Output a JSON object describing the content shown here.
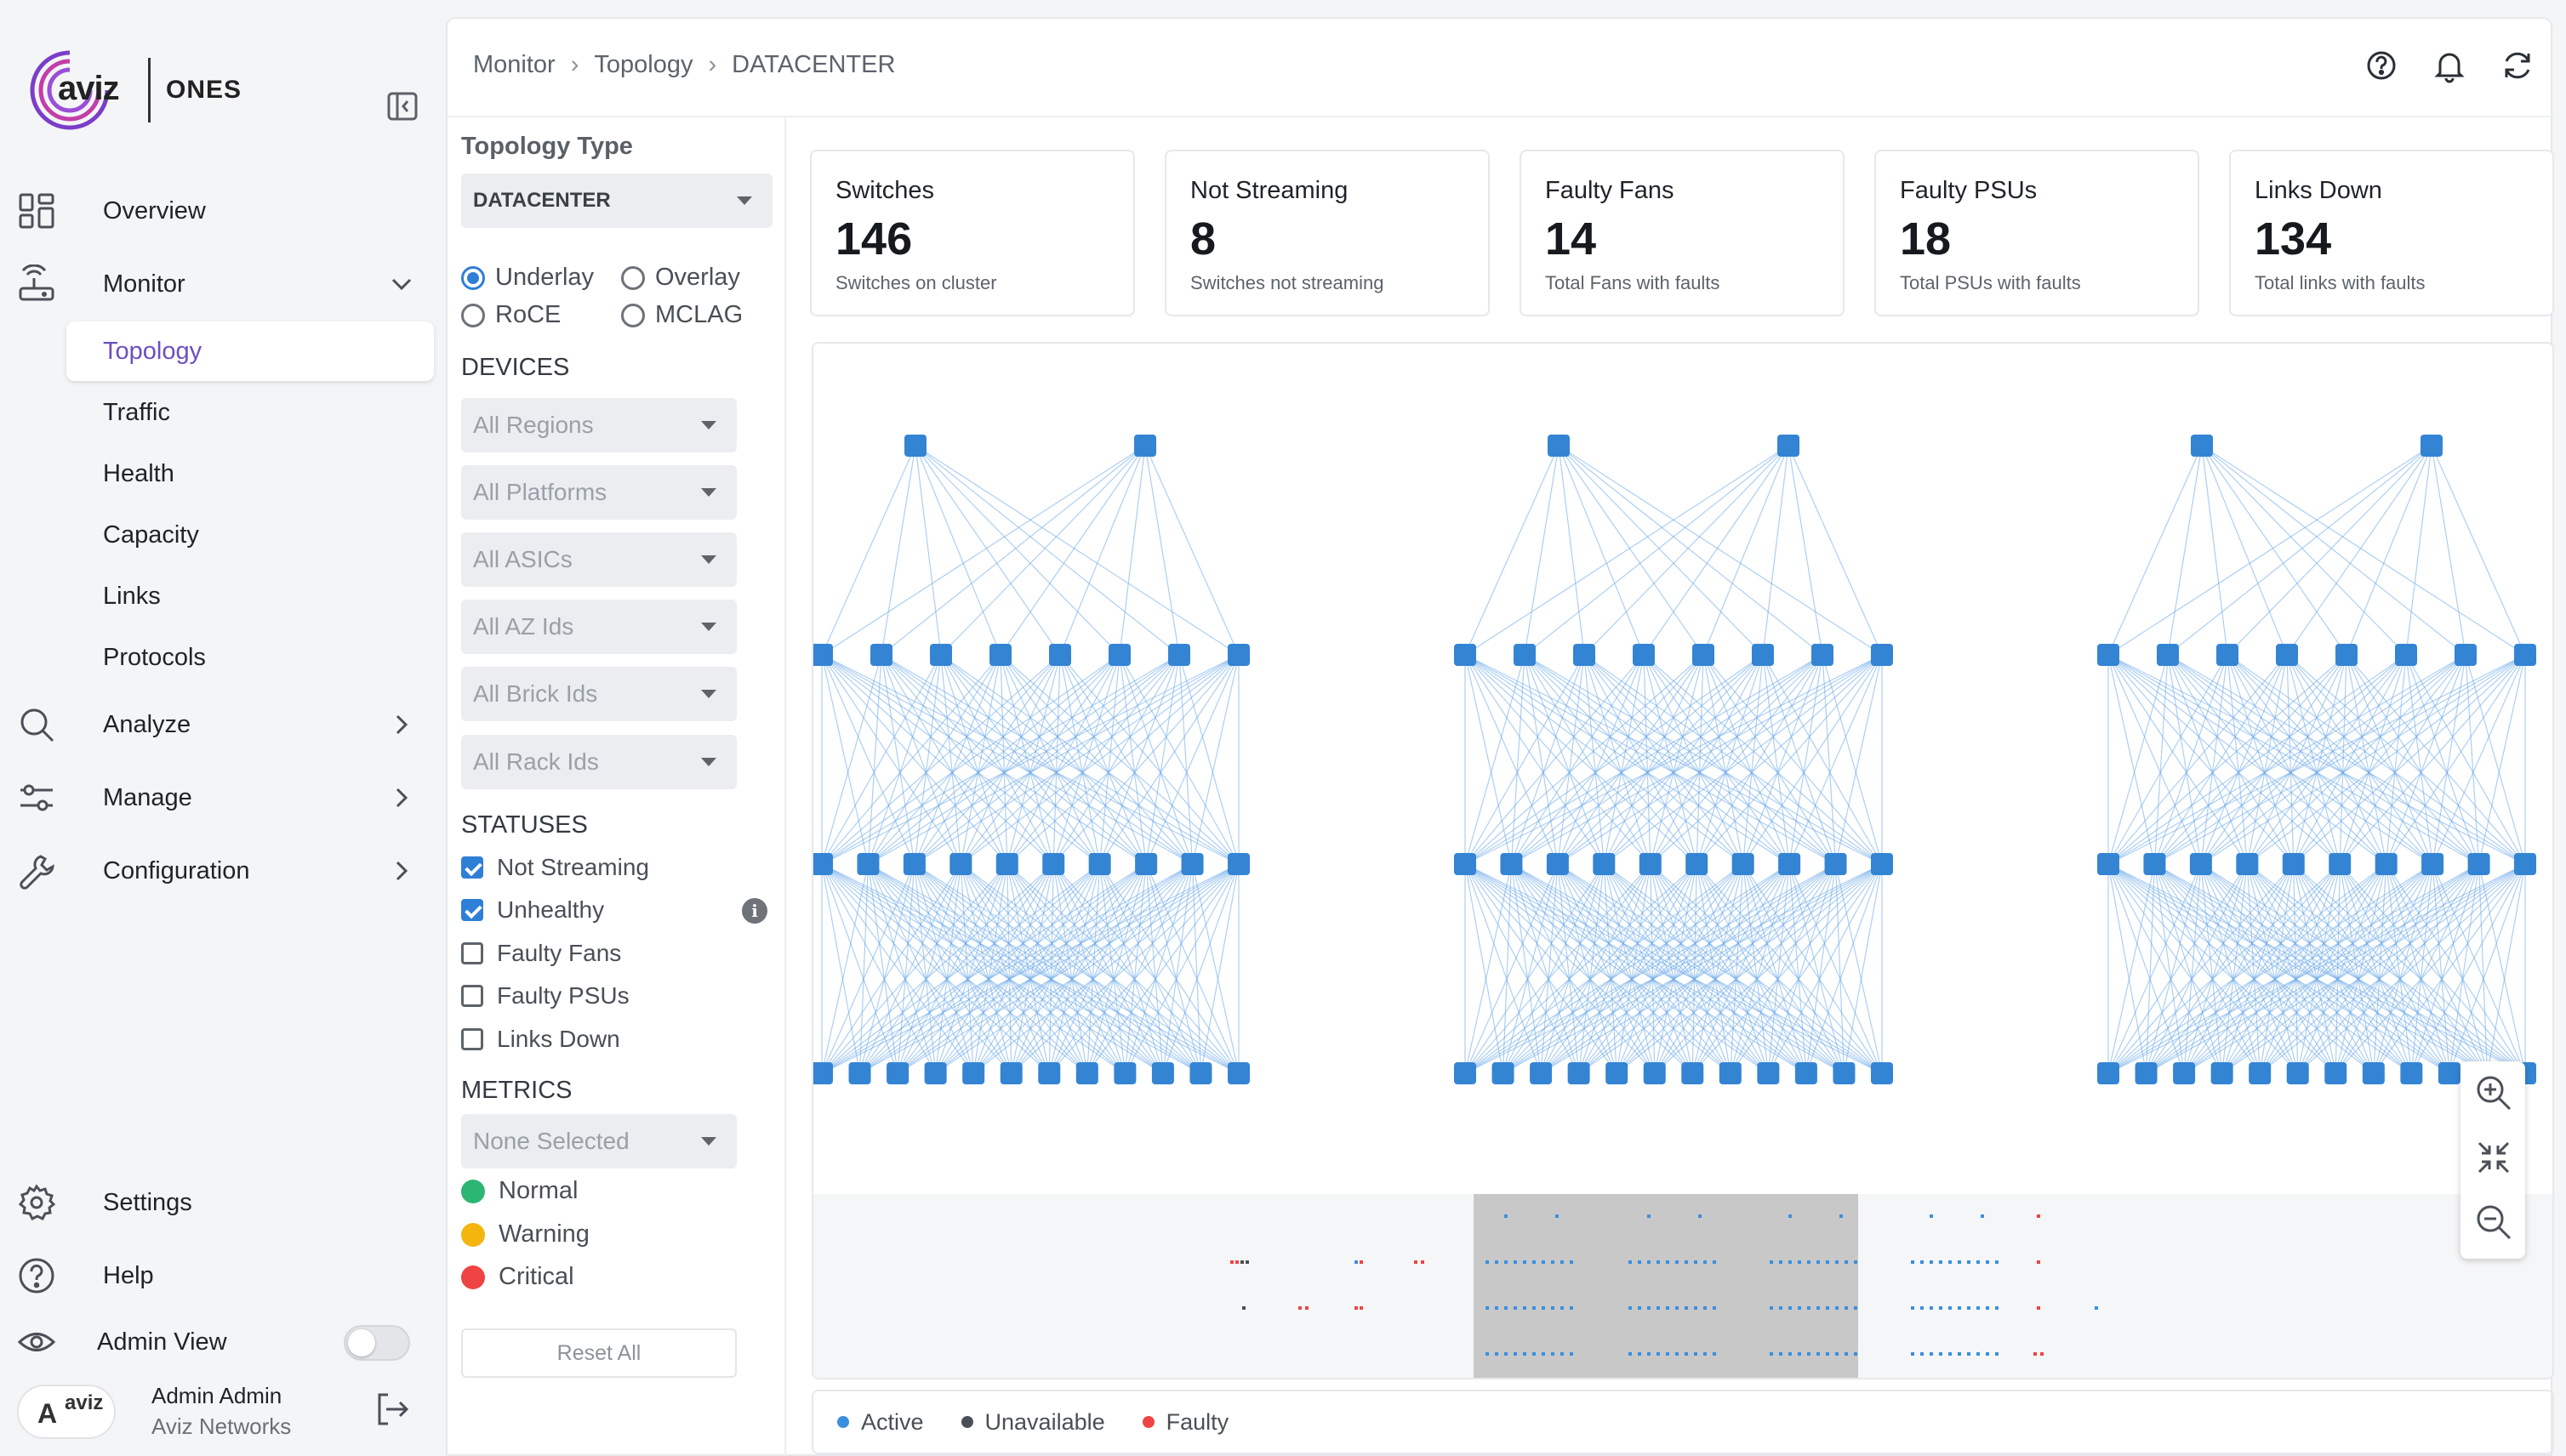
{
  "brand": {
    "logo_text": "aviz",
    "product": "ONES"
  },
  "nav": {
    "overview": "Overview",
    "monitor": "Monitor",
    "monitor_sub": [
      "Topology",
      "Traffic",
      "Health",
      "Capacity",
      "Links",
      "Protocols"
    ],
    "analyze": "Analyze",
    "manage": "Manage",
    "configuration": "Configuration",
    "settings": "Settings",
    "help": "Help",
    "admin_view": "Admin View"
  },
  "user": {
    "initial": "A",
    "logo": "aviz",
    "name": "Admin Admin",
    "org": "Aviz Networks"
  },
  "breadcrumb": [
    "Monitor",
    "Topology",
    "DATACENTER"
  ],
  "filters": {
    "topology_type_title": "Topology Type",
    "topology_type_value": "DATACENTER",
    "views": [
      "Underlay",
      "Overlay",
      "RoCE",
      "MCLAG"
    ],
    "selected_view": "Underlay",
    "devices_title": "DEVICES",
    "devices": [
      "All Regions",
      "All Platforms",
      "All ASICs",
      "All AZ Ids",
      "All Brick Ids",
      "All Rack Ids"
    ],
    "statuses_title": "STATUSES",
    "statuses": [
      {
        "label": "Not Streaming",
        "checked": true
      },
      {
        "label": "Unhealthy",
        "checked": true
      },
      {
        "label": "Faulty Fans",
        "checked": false
      },
      {
        "label": "Faulty PSUs",
        "checked": false
      },
      {
        "label": "Links Down",
        "checked": false
      }
    ],
    "metrics_title": "METRICS",
    "metrics_placeholder": "None Selected",
    "metric_levels": [
      {
        "label": "Normal",
        "color": "#2bb673"
      },
      {
        "label": "Warning",
        "color": "#f5b50f"
      },
      {
        "label": "Critical",
        "color": "#ef4444"
      }
    ],
    "reset_label": "Reset All"
  },
  "stats": [
    {
      "title": "Switches",
      "value": "146",
      "sub": "Switches on cluster"
    },
    {
      "title": "Not Streaming",
      "value": "8",
      "sub": "Switches not streaming"
    },
    {
      "title": "Faulty Fans",
      "value": "14",
      "sub": "Total Fans with faults"
    },
    {
      "title": "Faulty PSUs",
      "value": "18",
      "sub": "Total PSUs with faults"
    },
    {
      "title": "Links Down",
      "value": "134",
      "sub": "Total links with faults"
    }
  ],
  "legend": [
    {
      "label": "Active",
      "color": "#3a8fe0"
    },
    {
      "label": "Unavailable",
      "color": "#4a4f56"
    },
    {
      "label": "Faulty",
      "color": "#ef4444"
    }
  ],
  "colors": {
    "accent": "#6b4fc2",
    "node": "#3484d4",
    "link": "#6aa8e8"
  },
  "icons": {
    "overview": "grid-icon",
    "monitor": "antenna-icon",
    "analyze": "search-icon",
    "manage": "sliders-icon",
    "configuration": "wrench-icon",
    "settings": "gear-icon",
    "help": "question-icon",
    "admin": "eye-icon"
  }
}
